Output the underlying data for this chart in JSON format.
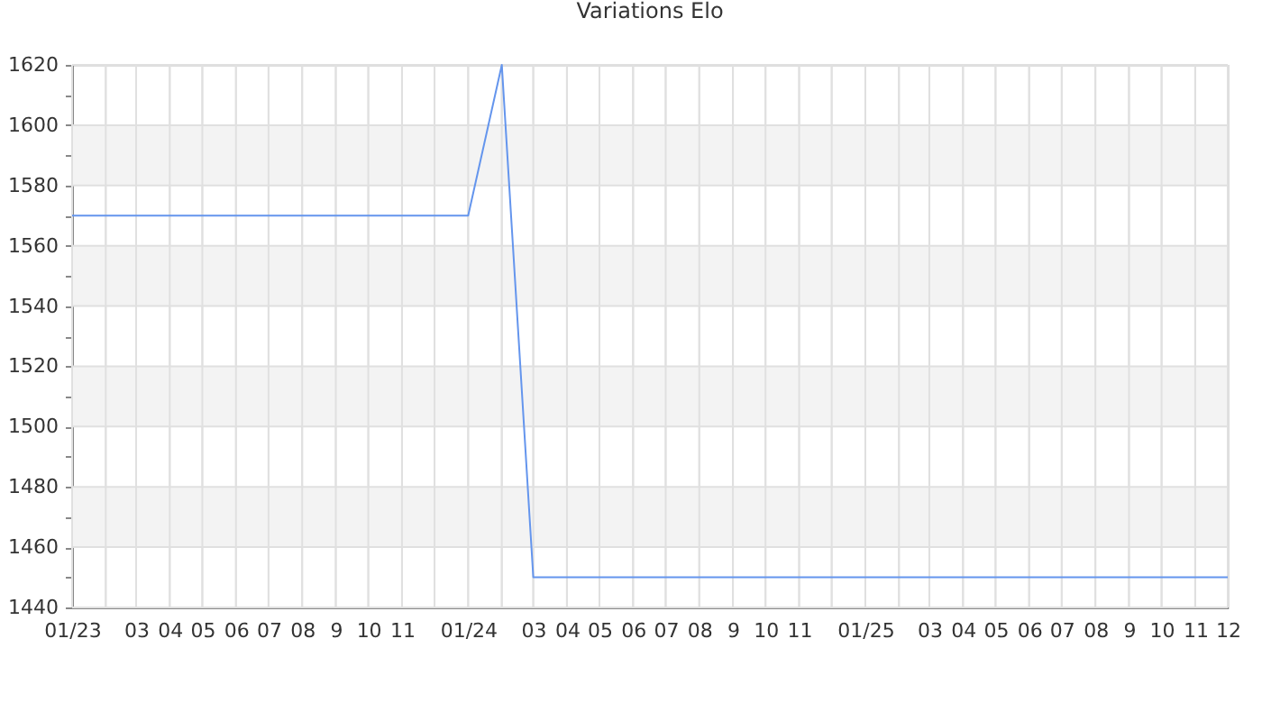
{
  "chart_data": {
    "type": "line",
    "title": "Variations Elo",
    "x": [
      "2023-01",
      "2023-02",
      "2023-03",
      "2023-04",
      "2023-05",
      "2023-06",
      "2023-07",
      "2023-08",
      "2023-09",
      "2023-10",
      "2023-11",
      "2023-12",
      "2024-01",
      "2024-02",
      "2024-03",
      "2024-04",
      "2024-05",
      "2024-06",
      "2024-07",
      "2024-08",
      "2024-09",
      "2024-10",
      "2024-11",
      "2024-12",
      "2025-01",
      "2025-02",
      "2025-03",
      "2025-04",
      "2025-05",
      "2025-06",
      "2025-07",
      "2025-08",
      "2025-09",
      "2025-10",
      "2025-11",
      "2025-12"
    ],
    "series": [
      {
        "color": "#6495ed",
        "values": [
          1570,
          1570,
          1570,
          1570,
          1570,
          1570,
          1570,
          1570,
          1570,
          1570,
          1570,
          1570,
          1570,
          1620,
          1450,
          1450,
          1450,
          1450,
          1450,
          1450,
          1450,
          1450,
          1450,
          1450,
          1450,
          1450,
          1450,
          1450,
          1450,
          1450,
          1450,
          1450,
          1450,
          1450,
          1450,
          1450
        ]
      }
    ],
    "xlim": [
      "2023-01",
      "2025-12"
    ],
    "xticks": [
      {
        "value": "2023-01",
        "label": "01/23"
      },
      {
        "value": "2023-02",
        "label": null
      },
      {
        "value": "2023-03",
        "label": "03"
      },
      {
        "value": "2023-04",
        "label": "04"
      },
      {
        "value": "2023-05",
        "label": "05"
      },
      {
        "value": "2023-06",
        "label": "06"
      },
      {
        "value": "2023-07",
        "label": "07"
      },
      {
        "value": "2023-08",
        "label": "08"
      },
      {
        "value": "2023-09",
        "label": "9"
      },
      {
        "value": "2023-10",
        "label": "10"
      },
      {
        "value": "2023-11",
        "label": "11"
      },
      {
        "value": "2023-12",
        "label": null
      },
      {
        "value": "2024-01",
        "label": "01/24"
      },
      {
        "value": "2024-02",
        "label": null
      },
      {
        "value": "2024-03",
        "label": "03"
      },
      {
        "value": "2024-04",
        "label": "04"
      },
      {
        "value": "2024-05",
        "label": "05"
      },
      {
        "value": "2024-06",
        "label": "06"
      },
      {
        "value": "2024-07",
        "label": "07"
      },
      {
        "value": "2024-08",
        "label": "08"
      },
      {
        "value": "2024-09",
        "label": "9"
      },
      {
        "value": "2024-10",
        "label": "10"
      },
      {
        "value": "2024-11",
        "label": "11"
      },
      {
        "value": "2024-12",
        "label": null
      },
      {
        "value": "2025-01",
        "label": "01/25"
      },
      {
        "value": "2025-02",
        "label": null
      },
      {
        "value": "2025-03",
        "label": "03"
      },
      {
        "value": "2025-04",
        "label": "04"
      },
      {
        "value": "2025-05",
        "label": "05"
      },
      {
        "value": "2025-06",
        "label": "06"
      },
      {
        "value": "2025-07",
        "label": "07"
      },
      {
        "value": "2025-08",
        "label": "08"
      },
      {
        "value": "2025-09",
        "label": "9"
      },
      {
        "value": "2025-10",
        "label": "10"
      },
      {
        "value": "2025-11",
        "label": "11"
      },
      {
        "value": "2025-12",
        "label": "12"
      }
    ],
    "ylim": [
      1440,
      1620
    ],
    "yticks": [
      1440,
      {
        "value": 1450,
        "label": null
      },
      1460,
      {
        "value": 1470,
        "label": null
      },
      1480,
      {
        "value": 1490,
        "label": null
      },
      1500,
      {
        "value": 1510,
        "label": null
      },
      1520,
      {
        "value": 1530,
        "label": null
      },
      1540,
      {
        "value": 1550,
        "label": null
      },
      1560,
      {
        "value": 1570,
        "label": null
      },
      1580,
      {
        "value": 1590,
        "label": null
      },
      1600,
      {
        "value": 1610,
        "label": null
      },
      1620
    ],
    "bands": [
      {
        "axis": "y",
        "from": 1460,
        "to": 1480,
        "color": "#f3f3f3"
      },
      {
        "axis": "y",
        "from": 1500,
        "to": 1520,
        "color": "#f3f3f3"
      },
      {
        "axis": "y",
        "from": 1540,
        "to": 1560,
        "color": "#f3f3f3"
      },
      {
        "axis": "y",
        "from": 1580,
        "to": 1600,
        "color": "#f3f3f3"
      }
    ],
    "grid": true,
    "line_style": "solid"
  }
}
